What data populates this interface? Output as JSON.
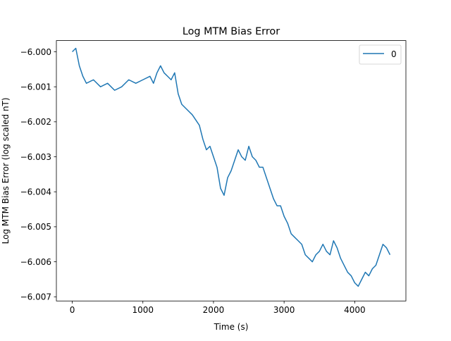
{
  "chart_data": {
    "type": "line",
    "title": "Log MTM Bias Error",
    "xlabel": "Time (s)",
    "ylabel": "Log MTM Bias Error (log scaled nT)",
    "xlim": [
      -225,
      4725
    ],
    "ylim": [
      -6.00712,
      5.9997
    ],
    "x_ticks": [
      0,
      1000,
      2000,
      3000,
      4000
    ],
    "x_tick_labels": [
      "0",
      "1000",
      "2000",
      "3000",
      "4000"
    ],
    "y_ticks": [
      -6.007,
      -6.006,
      -6.005,
      -6.004,
      -6.003,
      -6.002,
      -6.001,
      -6.0
    ],
    "y_tick_labels": [
      "−6.007",
      "−6.006",
      "−6.005",
      "−6.004",
      "−6.003",
      "−6.002",
      "−6.001",
      "−6.000"
    ],
    "grid": false,
    "legend": {
      "position": "top-right",
      "entries": [
        "0"
      ]
    },
    "series": [
      {
        "name": "0",
        "color": "#1f77b4",
        "x": [
          0,
          50,
          100,
          150,
          200,
          300,
          400,
          500,
          600,
          700,
          800,
          900,
          1000,
          1100,
          1150,
          1200,
          1250,
          1300,
          1350,
          1400,
          1450,
          1500,
          1550,
          1600,
          1700,
          1800,
          1850,
          1900,
          1950,
          2000,
          2050,
          2100,
          2150,
          2200,
          2250,
          2300,
          2350,
          2400,
          2450,
          2500,
          2550,
          2600,
          2650,
          2700,
          2750,
          2800,
          2850,
          2900,
          2950,
          3000,
          3050,
          3100,
          3150,
          3200,
          3250,
          3300,
          3350,
          3400,
          3450,
          3500,
          3550,
          3600,
          3650,
          3700,
          3750,
          3800,
          3850,
          3900,
          3950,
          4000,
          4050,
          4100,
          4150,
          4200,
          4250,
          4300,
          4350,
          4400,
          4450,
          4500
        ],
        "y": [
          -6.0,
          -5.9999,
          -6.0004,
          -6.0007,
          -6.0009,
          -6.0008,
          -6.001,
          -6.0009,
          -6.0011,
          -6.001,
          -6.0008,
          -6.0009,
          -6.0008,
          -6.0007,
          -6.0009,
          -6.0006,
          -6.0004,
          -6.0006,
          -6.0007,
          -6.0008,
          -6.0006,
          -6.0012,
          -6.0015,
          -6.0016,
          -6.0018,
          -6.0021,
          -6.0025,
          -6.0028,
          -6.0027,
          -6.003,
          -6.0033,
          -6.0039,
          -6.0041,
          -6.0036,
          -6.0034,
          -6.0031,
          -6.0028,
          -6.003,
          -6.0031,
          -6.0027,
          -6.003,
          -6.0031,
          -6.0033,
          -6.0033,
          -6.0036,
          -6.0039,
          -6.0042,
          -6.0044,
          -6.0044,
          -6.0047,
          -6.0049,
          -6.0052,
          -6.0053,
          -6.0054,
          -6.0055,
          -6.0058,
          -6.0059,
          -6.006,
          -6.0058,
          -6.0057,
          -6.0055,
          -6.0057,
          -6.0058,
          -6.0054,
          -6.0056,
          -6.0059,
          -6.0061,
          -6.0063,
          -6.0064,
          -6.0066,
          -6.0067,
          -6.0065,
          -6.0063,
          -6.0064,
          -6.0062,
          -6.0061,
          -6.0058,
          -6.0055,
          -6.0056,
          -6.0058
        ]
      }
    ]
  }
}
